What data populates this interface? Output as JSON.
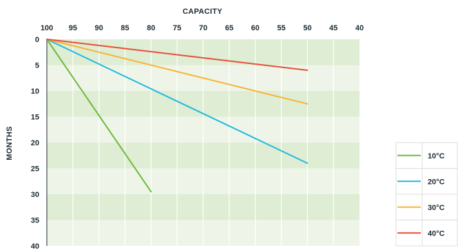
{
  "chart_data": {
    "type": "line",
    "xlabel": "CAPACITY",
    "ylabel": "MONTHS",
    "xlim": [
      100,
      40
    ],
    "ylim": [
      0,
      40
    ],
    "x_ticks": [
      "100",
      "95",
      "90",
      "85",
      "80",
      "75",
      "70",
      "65",
      "60",
      "55",
      "50",
      "45",
      "40"
    ],
    "y_ticks": [
      "0",
      "5",
      "10",
      "15",
      "20",
      "25",
      "30",
      "35",
      "40"
    ],
    "grid": true,
    "legend_position": "bottom-right",
    "series": [
      {
        "name": "10°C",
        "color": "#6cbb3c",
        "points": [
          [
            100,
            0
          ],
          [
            80,
            29.5
          ]
        ]
      },
      {
        "name": "20°C",
        "color": "#22b8e0",
        "points": [
          [
            100,
            0
          ],
          [
            50,
            24
          ]
        ]
      },
      {
        "name": "30°C",
        "color": "#f9b233",
        "points": [
          [
            100,
            0
          ],
          [
            50,
            12.5
          ]
        ]
      },
      {
        "name": "40°C",
        "color": "#e94e3b",
        "points": [
          [
            100,
            0
          ],
          [
            50,
            6
          ]
        ]
      }
    ],
    "band_colors": [
      "#deedd3",
      "#eef5e8"
    ]
  }
}
